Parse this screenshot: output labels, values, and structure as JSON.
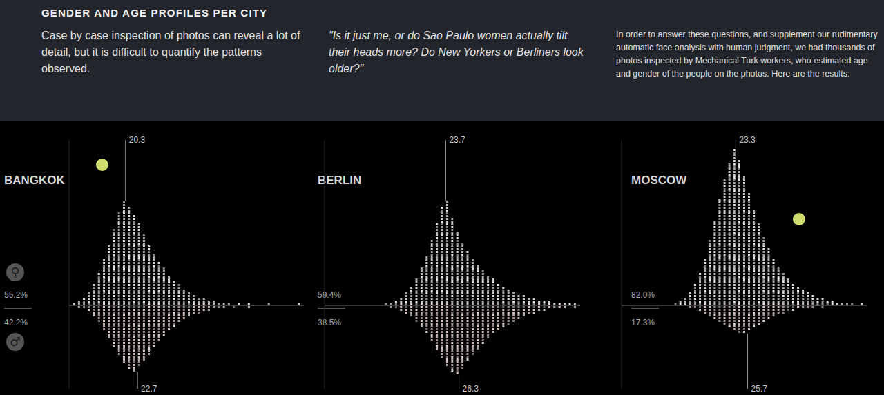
{
  "header": {
    "title": "GENDER AND AGE PROFILES PER CITY",
    "columns": [
      "Case by case inspection of photos can reveal a lot of detail, but it is difficult to quantify the patterns observed.",
      "\"Is it just me, or do Sao Paulo women actually tilt their heads more? Do New Yorkers or Berliners look older?\"",
      "In order to answer these questions, and supplement our rudimentary automatic face analysis with human judgment, we had thousands of photos inspected by Mechanical Turk workers, who estimated age and gender of the people on the photos. Here are the results:"
    ]
  },
  "gender_symbols": {
    "female": "♀",
    "male": "♂"
  },
  "chart_data": [
    {
      "type": "bar",
      "title": "BANGKOK",
      "tick_labels": false,
      "x": [
        10,
        11,
        12,
        13,
        14,
        15,
        16,
        17,
        18,
        19,
        20,
        21,
        22,
        23,
        24,
        25,
        26,
        27,
        28,
        29,
        30,
        31,
        32,
        33,
        34,
        35,
        36,
        37,
        38,
        39,
        40,
        41,
        42,
        43,
        44,
        45,
        46,
        47,
        48,
        49,
        50,
        51,
        52,
        53,
        54,
        55
      ],
      "xlim": [
        9,
        56
      ],
      "ylim": [
        0,
        60
      ],
      "y2lim": [
        0,
        30
      ],
      "series": [
        {
          "color": "#e6e1dd",
          "values": [
            1,
            2,
            3,
            5,
            8,
            12,
            17,
            22,
            28,
            34,
            38,
            36,
            33,
            30,
            26,
            22,
            19,
            16,
            14,
            11,
            9,
            8,
            6,
            5,
            4,
            3,
            3,
            2,
            2,
            1,
            1,
            1,
            0,
            1,
            0,
            1,
            0,
            0,
            0,
            1,
            0,
            0,
            0,
            0,
            0,
            1
          ],
          "mean": 20.3,
          "share": "55.2%"
        },
        {
          "color": "#d9ccc6",
          "axis": "y2",
          "values": [
            0,
            1,
            1,
            2,
            4,
            6,
            9,
            12,
            15,
            18,
            21,
            23,
            24,
            22,
            20,
            18,
            15,
            13,
            11,
            9,
            8,
            6,
            5,
            4,
            3,
            3,
            2,
            2,
            1,
            1,
            1,
            0,
            1,
            0,
            0,
            1,
            0,
            0,
            0,
            0,
            0,
            0,
            0,
            0,
            0,
            0
          ],
          "mean": 22.7,
          "share": "42.2%"
        }
      ]
    },
    {
      "type": "bar",
      "title": "BERLIN",
      "tick_labels": false,
      "x": [
        10,
        11,
        12,
        13,
        14,
        15,
        16,
        17,
        18,
        19,
        20,
        21,
        22,
        23,
        24,
        25,
        26,
        27,
        28,
        29,
        30,
        31,
        32,
        33,
        34,
        35,
        36,
        37,
        38,
        39,
        40,
        41,
        42,
        43,
        44,
        45,
        46,
        47,
        48,
        49,
        50,
        51,
        52,
        53,
        54,
        55
      ],
      "xlim": [
        0,
        50
      ],
      "ylim": [
        0,
        60
      ],
      "y2lim": [
        0,
        30
      ],
      "series": [
        {
          "color": "#e6e1dd",
          "values": [
            0,
            0,
            1,
            1,
            2,
            3,
            5,
            7,
            10,
            14,
            18,
            24,
            30,
            36,
            38,
            32,
            27,
            23,
            20,
            17,
            15,
            13,
            11,
            10,
            8,
            7,
            6,
            5,
            4,
            4,
            3,
            3,
            2,
            2,
            2,
            1,
            1,
            1,
            1,
            1,
            0,
            0,
            0,
            0,
            0,
            0
          ],
          "mean": 23.7,
          "share": "59.4%"
        },
        {
          "color": "#d9ccc6",
          "axis": "y2",
          "values": [
            0,
            0,
            0,
            1,
            1,
            2,
            3,
            4,
            6,
            8,
            10,
            13,
            16,
            19,
            22,
            24,
            25,
            23,
            20,
            18,
            16,
            14,
            12,
            10,
            9,
            8,
            7,
            6,
            5,
            4,
            3,
            3,
            2,
            2,
            1,
            1,
            1,
            1,
            0,
            1,
            0,
            0,
            0,
            0,
            0,
            0
          ],
          "mean": 26.3,
          "share": "38.5%"
        }
      ]
    },
    {
      "type": "bar",
      "title": "MOSCOW",
      "tick_labels": false,
      "x": [
        10,
        11,
        12,
        13,
        14,
        15,
        16,
        17,
        18,
        19,
        20,
        21,
        22,
        23,
        24,
        25,
        26,
        27,
        28,
        29,
        30,
        31,
        32,
        33,
        34,
        35,
        36,
        37,
        38,
        39,
        40,
        41,
        42,
        43,
        44,
        45,
        46,
        47,
        48,
        49,
        50,
        51,
        52,
        53,
        54,
        55
      ],
      "xlim": [
        0,
        50
      ],
      "ylim": [
        0,
        60
      ],
      "y2lim": [
        0,
        30
      ],
      "series": [
        {
          "color": "#e6e1dd",
          "values": [
            0,
            1,
            2,
            3,
            5,
            8,
            12,
            17,
            24,
            31,
            39,
            46,
            52,
            57,
            53,
            47,
            41,
            35,
            30,
            25,
            21,
            17,
            14,
            12,
            10,
            8,
            7,
            6,
            5,
            4,
            3,
            3,
            2,
            2,
            1,
            1,
            1,
            1,
            0,
            1,
            0,
            0,
            0,
            0,
            0,
            0
          ],
          "mean": 23.3,
          "share": "82.0%"
        },
        {
          "color": "#d9ccc6",
          "axis": "y2",
          "values": [
            0,
            0,
            0,
            0,
            1,
            1,
            2,
            3,
            4,
            5,
            6,
            7,
            8,
            9,
            10,
            10,
            9,
            8,
            7,
            6,
            5,
            4,
            3,
            3,
            2,
            2,
            1,
            1,
            1,
            1,
            0,
            1,
            0,
            0,
            0,
            0,
            0,
            0,
            0,
            0,
            0,
            0,
            0,
            0,
            0,
            0
          ],
          "mean": 25.7,
          "share": "17.3%"
        }
      ]
    }
  ]
}
